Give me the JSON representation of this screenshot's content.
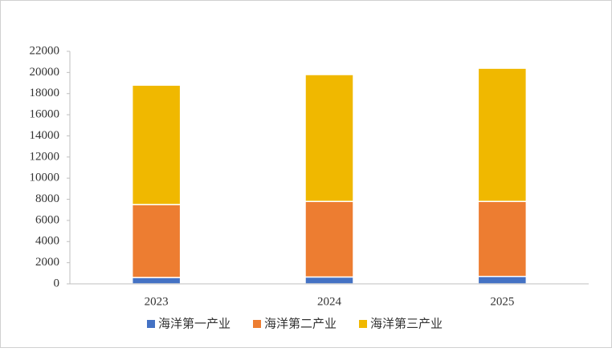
{
  "chart_data": {
    "type": "stacked_bar",
    "categories": [
      "2023",
      "2024",
      "2025"
    ],
    "series": [
      {
        "name": "海洋第一产业",
        "color": "#4472c4",
        "values": [
          600,
          650,
          700
        ]
      },
      {
        "name": "海洋第二产业",
        "color": "#ed7d31",
        "values": [
          6900,
          7150,
          7100
        ]
      },
      {
        "name": "海洋第三产业",
        "color": "#f0b800",
        "values": [
          11300,
          12000,
          12600
        ]
      }
    ],
    "ylim": [
      0,
      22000
    ],
    "yticks": [
      0,
      2000,
      4000,
      6000,
      8000,
      10000,
      12000,
      14000,
      16000,
      18000,
      20000,
      22000
    ]
  }
}
